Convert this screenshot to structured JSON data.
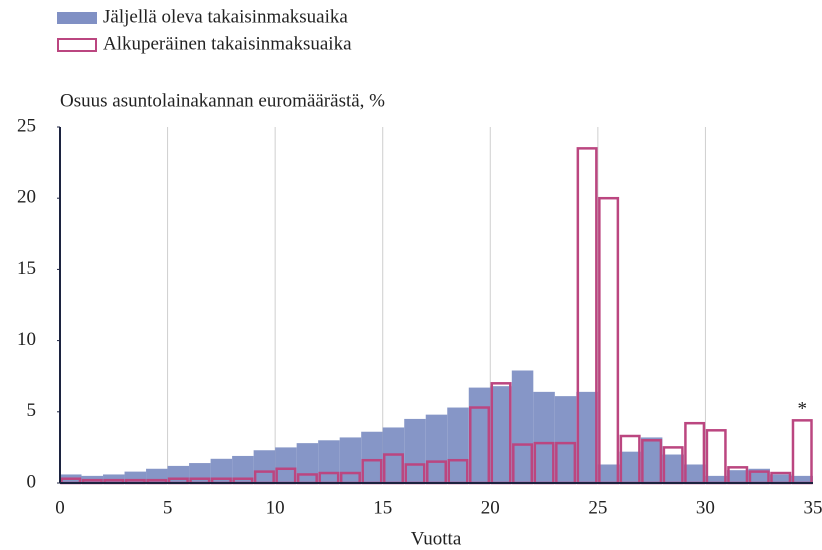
{
  "chart_data": {
    "type": "histogram",
    "y_label": "Osuus asuntolainakannan euromäärästä, %",
    "x_label": "Vuotta",
    "annotation": "*",
    "bins": [
      0,
      1,
      2,
      3,
      4,
      5,
      6,
      7,
      8,
      9,
      10,
      11,
      12,
      13,
      14,
      15,
      16,
      17,
      18,
      19,
      20,
      21,
      22,
      23,
      24,
      25,
      26,
      27,
      28,
      29,
      30,
      31,
      32,
      33,
      34,
      35
    ],
    "series": [
      {
        "name": "Jäljellä oleva takaisinmaksuaika",
        "color": "#8090c4",
        "style": "filled",
        "values": [
          0.6,
          0.5,
          0.6,
          0.8,
          1.0,
          1.2,
          1.4,
          1.7,
          1.9,
          2.3,
          2.5,
          2.8,
          3.0,
          3.2,
          3.6,
          3.9,
          4.5,
          4.8,
          5.3,
          6.7,
          6.8,
          7.9,
          6.4,
          6.1,
          6.4,
          1.3,
          2.2,
          3.2,
          2.0,
          1.3,
          0.5,
          0.9,
          1.0,
          0.6,
          0.5
        ]
      },
      {
        "name": "Alkuperäinen takaisinmaksuaika",
        "color": "#bb4680",
        "style": "outline",
        "values": [
          0.3,
          0.2,
          0.2,
          0.2,
          0.2,
          0.3,
          0.3,
          0.3,
          0.3,
          0.8,
          1.0,
          0.6,
          0.7,
          0.7,
          1.6,
          2.0,
          1.3,
          1.5,
          1.6,
          5.3,
          7.0,
          2.7,
          2.8,
          2.8,
          23.5,
          20.0,
          3.3,
          3.0,
          2.5,
          4.2,
          3.7,
          1.1,
          0.8,
          0.7,
          4.4
        ]
      }
    ],
    "xlim": [
      0,
      35
    ],
    "xticks": [
      0,
      5,
      10,
      15,
      20,
      25,
      30,
      35
    ],
    "ylim": [
      0,
      25
    ],
    "yticks": [
      0,
      5,
      10,
      15,
      20,
      25
    ],
    "grid": "x"
  }
}
